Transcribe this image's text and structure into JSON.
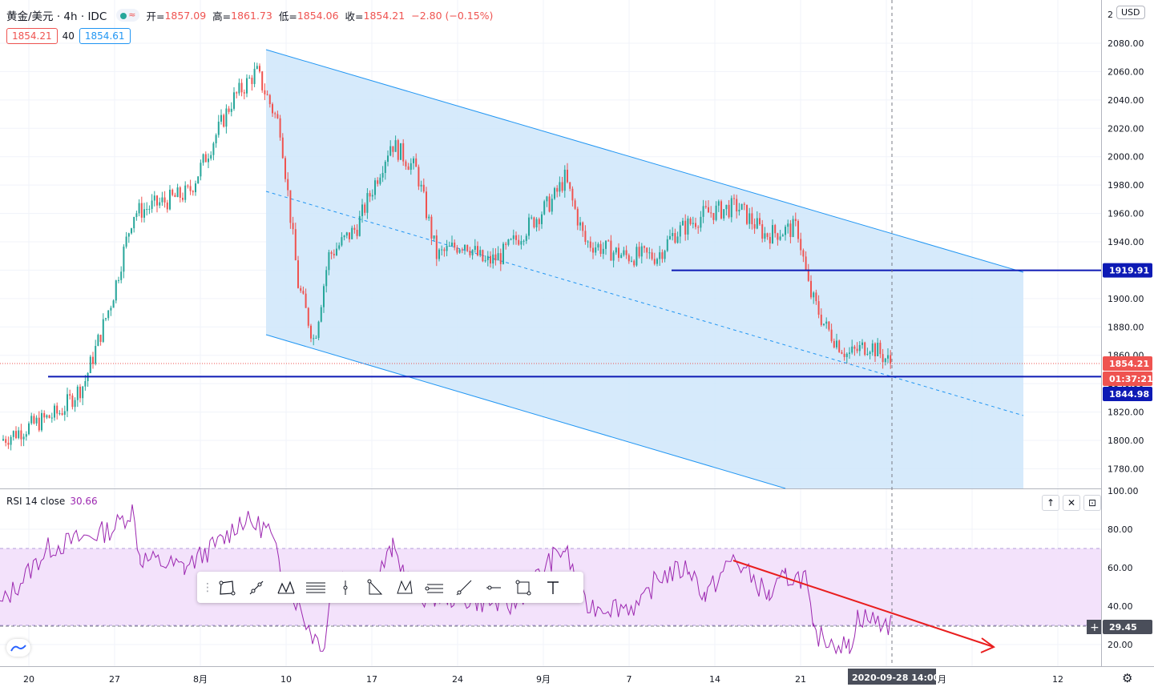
{
  "symbol": {
    "name": "黄金/美元 · 4h · IDC",
    "ohlc": [
      {
        "label": "开=",
        "value": "1857.09"
      },
      {
        "label": "高=",
        "value": "1861.73"
      },
      {
        "label": "低=",
        "value": "1854.06"
      },
      {
        "label": "收=",
        "value": "1854.21"
      }
    ],
    "change": "−2.80 (−0.15%)",
    "bid": "1854.21",
    "spread": "40",
    "ask": "1854.61",
    "currency": "USD"
  },
  "colors": {
    "up": "#26a69a",
    "down": "#ef5350",
    "channel_line": "#2196f3",
    "channel_fill": "#cfe6fa",
    "horizontal_line": "#0d1ab5",
    "rsi_line": "#9c27b0",
    "rsi_band": "#f3e2fb",
    "arrow": "#e91e1e"
  },
  "price_axis": {
    "ticks": [
      "2080.00",
      "2060.00",
      "2040.00",
      "2020.00",
      "2000.00",
      "1980.00",
      "1960.00",
      "1940.00",
      "1920.00",
      "1900.00",
      "1880.00",
      "1860.00",
      "1840.00",
      "1820.00",
      "1800.00",
      "1780.00"
    ],
    "top_partial": "2",
    "labels": {
      "resistance": "1919.91",
      "last_price": "1854.21",
      "countdown": "01:37:21",
      "support": "1844.98"
    }
  },
  "time_axis": {
    "ticks": [
      "20",
      "27",
      "8月",
      "10",
      "17",
      "24",
      "9月",
      "7",
      "14",
      "21",
      "12"
    ],
    "crosshair_label": "2020-09-28   14:00",
    "partial": "月"
  },
  "rsi": {
    "label": "RSI 14 close",
    "value": "30.66",
    "ticks": [
      "100.00",
      "80.00",
      "60.00",
      "40.00",
      "20.00"
    ],
    "crosshair_value": "29.45",
    "upper_band": 70,
    "lower_band": 30,
    "buttons": [
      "↑",
      "✕",
      "⊡"
    ]
  },
  "toolbar_tools": [
    "rectangle-icon",
    "trend-line-icon",
    "pattern-icon",
    "fib-icon",
    "vertical-line-icon",
    "triangle-icon",
    "xabcd-icon",
    "pitchfork-icon",
    "ray-icon",
    "horizontal-line-icon",
    "square-icon",
    "text-icon"
  ],
  "chart_data": {
    "type": "candlestick",
    "timeframe": "4h",
    "ylim": [
      1770,
      2090
    ],
    "anchors": [
      [
        "20",
        "1800"
      ],
      [
        "22",
        "1820"
      ],
      [
        "24",
        "1840"
      ],
      [
        "26",
        "1900"
      ],
      [
        "27",
        "1960"
      ],
      [
        "8月3",
        "1975"
      ],
      [
        "8月5",
        "2040"
      ],
      [
        "8月7",
        "2060"
      ],
      [
        "8月10",
        "2020"
      ],
      [
        "8月11",
        "1910"
      ],
      [
        "8月12",
        "1870"
      ],
      [
        "8月13",
        "1930"
      ],
      [
        "8月17",
        "1950"
      ],
      [
        "8月19",
        "2010"
      ],
      [
        "8月20",
        "1990"
      ],
      [
        "8月21",
        "1930"
      ],
      [
        "8月24",
        "1940"
      ],
      [
        "8月26",
        "1925"
      ],
      [
        "8月28",
        "1930"
      ],
      [
        "9月1",
        "1970"
      ],
      [
        "9月2",
        "1985"
      ],
      [
        "9月3",
        "1940"
      ],
      [
        "9月7",
        "1930"
      ],
      [
        "9月9",
        "1930"
      ],
      [
        "9月10",
        "1945"
      ],
      [
        "9月14",
        "1960"
      ],
      [
        "9月17",
        "1965"
      ],
      [
        "9月18",
        "1945"
      ],
      [
        "9月21",
        "1950"
      ],
      [
        "9月22",
        "1905"
      ],
      [
        "9月23",
        "1880"
      ],
      [
        "9月24",
        "1860"
      ],
      [
        "9月25",
        "1868"
      ],
      [
        "9月28",
        "1854.21"
      ]
    ],
    "last": {
      "open": 1857.09,
      "high": 1861.73,
      "low": 1854.06,
      "close": 1854.21
    },
    "horizontal_levels": [
      1919.91,
      1844.98
    ]
  }
}
